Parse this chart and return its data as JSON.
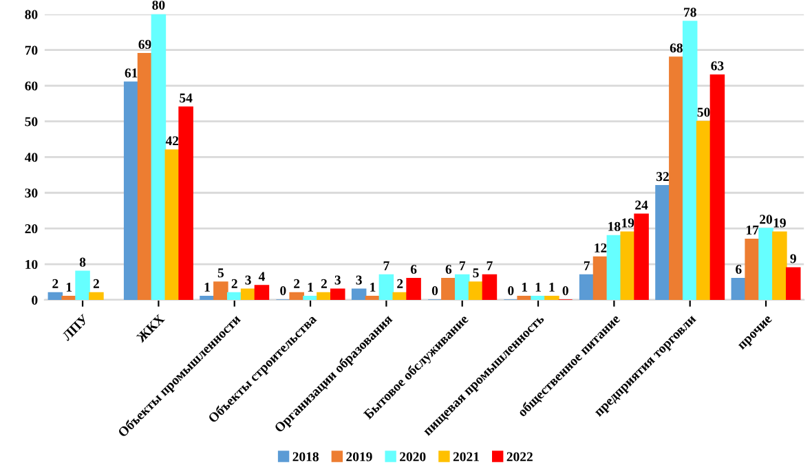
{
  "chart_data": {
    "type": "bar",
    "categories": [
      "ЛПУ",
      "ЖКХ",
      "Объекты промышленности",
      "Объекты строительства",
      "Организации образования",
      "Бытовое обслуживание",
      "пищевая промышленность",
      "общественное питание",
      "предприятия торговли",
      "прочие"
    ],
    "series": [
      {
        "name": "2018",
        "color": "#5b9bd5",
        "values": [
          2,
          61,
          1,
          0,
          3,
          0,
          0,
          7,
          32,
          6
        ]
      },
      {
        "name": "2019",
        "color": "#ed7d31",
        "values": [
          1,
          69,
          5,
          2,
          1,
          6,
          1,
          12,
          68,
          17
        ]
      },
      {
        "name": "2020",
        "color": "#66ffff",
        "values": [
          8,
          80,
          2,
          1,
          7,
          7,
          1,
          18,
          78,
          20
        ]
      },
      {
        "name": "2021",
        "color": "#ffc000",
        "values": [
          2,
          42,
          3,
          2,
          2,
          5,
          1,
          19,
          50,
          19
        ]
      },
      {
        "name": "2022",
        "color": "#ff0000",
        "values": [
          null,
          54,
          4,
          3,
          6,
          7,
          0,
          24,
          63,
          9
        ]
      }
    ],
    "ylim": [
      0,
      80
    ],
    "yticks": [
      0,
      10,
      20,
      30,
      40,
      50,
      60,
      70,
      80
    ],
    "grid": "y",
    "legend": "bottom",
    "data_labels": true
  }
}
